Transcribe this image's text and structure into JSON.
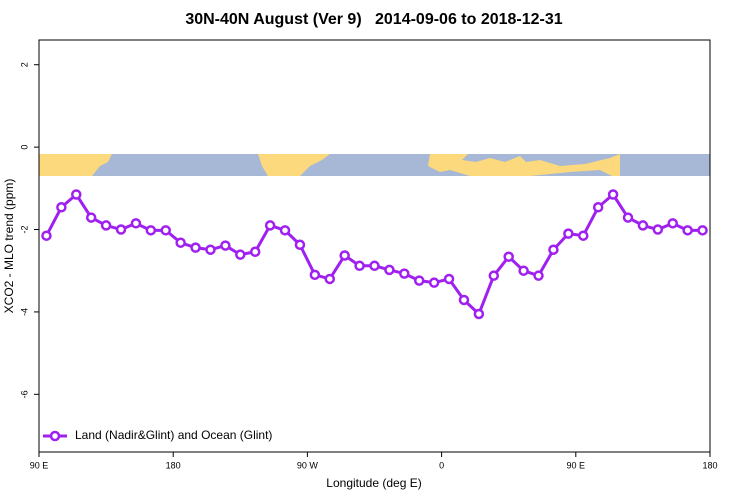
{
  "chart_data": {
    "type": "line",
    "title": "30N-40N August (Ver 9)   2014-09-06 to 2018-12-31",
    "xlabel": "Longitude (deg E)",
    "ylabel": "XCO2 - MLO trend (ppm)",
    "x": [
      95,
      105,
      115,
      125,
      135,
      145,
      155,
      165,
      175,
      185,
      195,
      205,
      215,
      225,
      235,
      245,
      255,
      265,
      275,
      285,
      295,
      305,
      315,
      325,
      335,
      345,
      355,
      365,
      375,
      385,
      395,
      405,
      415,
      425,
      435,
      445,
      455,
      465,
      475,
      485,
      495,
      505,
      515,
      525,
      535
    ],
    "series": [
      {
        "name": "Land (Nadir&Glint) and Ocean (Glint)",
        "color": "#a020f0",
        "values": [
          -2.15,
          -1.46,
          -1.15,
          -1.71,
          -1.9,
          -2.0,
          -1.85,
          -2.02,
          -2.02,
          -2.32,
          -2.44,
          -2.49,
          -2.39,
          -2.61,
          -2.54,
          -1.9,
          -2.02,
          -2.37,
          -3.1,
          -3.2,
          -2.63,
          -2.88,
          -2.88,
          -2.98,
          -3.07,
          -3.24,
          -3.29,
          -3.2,
          -3.71,
          -4.05,
          -3.12,
          -2.66,
          -3.0,
          -3.12,
          -2.49,
          -2.1,
          -2.15,
          -1.46,
          -1.15,
          -1.71,
          -1.9,
          -2.0,
          -1.85,
          -2.02,
          -2.02
        ]
      }
    ],
    "xlim": [
      90,
      540
    ],
    "xticks": [
      {
        "value": 90,
        "label": "90 E"
      },
      180,
      {
        "value": 270,
        "label": "90 W"
      },
      {
        "value": 360,
        "label": "0"
      },
      {
        "value": 450,
        "label": "90 E"
      },
      {
        "value": 540,
        "label": "180"
      }
    ],
    "ylim": [
      -7.4,
      2.6
    ],
    "yticks": [
      -6,
      -4,
      -2,
      0,
      2
    ],
    "legend": "bottomleft"
  }
}
